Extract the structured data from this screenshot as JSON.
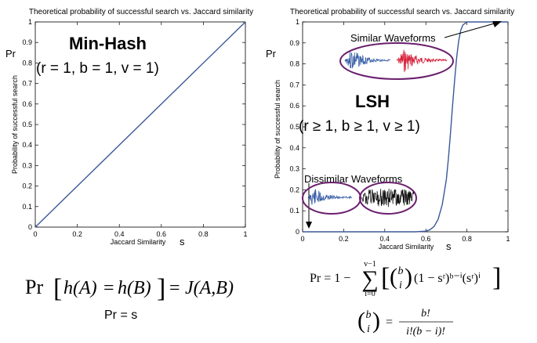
{
  "chart_data": [
    {
      "type": "line",
      "title": "Theoretical probability of successful search vs. Jaccard similarity",
      "xlabel": "Jaccard Similarity",
      "xlabel_symbol": "s",
      "ylabel": "Probability of successful search",
      "ylabel_symbol": "Pr",
      "xlim": [
        0,
        1
      ],
      "ylim": [
        0,
        1
      ],
      "xticks": [
        "0",
        "0.2",
        "0.4",
        "0.6",
        "0.8",
        "1"
      ],
      "yticks": [
        "0",
        "0.1",
        "0.2",
        "0.3",
        "0.4",
        "0.5",
        "0.6",
        "0.7",
        "0.8",
        "0.9",
        "1"
      ],
      "grid": false,
      "line_color": "#3b5998",
      "series": [
        {
          "x": [
            0,
            0.25,
            0.5,
            0.75,
            1
          ],
          "y": [
            0,
            0.25,
            0.5,
            0.75,
            1
          ]
        }
      ],
      "annotations": {
        "heading": "Min-Hash",
        "params": "(r = 1, b = 1, v = 1)"
      }
    },
    {
      "type": "line",
      "title": "Theoretical probability of successful search vs. Jaccard similarity",
      "xlabel": "Jaccard Similarity",
      "xlabel_symbol": "s",
      "ylabel": "Probability of successful search",
      "ylabel_symbol": "Pr",
      "xlim": [
        0,
        1
      ],
      "ylim": [
        0,
        1
      ],
      "xticks": [
        "0",
        "0.2",
        "0.4",
        "0.6",
        "0.8",
        "1"
      ],
      "yticks": [
        "0",
        "0.1",
        "0.2",
        "0.3",
        "0.4",
        "0.5",
        "0.6",
        "0.7",
        "0.8",
        "0.9",
        "1"
      ],
      "grid": false,
      "line_color": "#3b5998",
      "series": [
        {
          "x": [
            0,
            0.55,
            0.6,
            0.62,
            0.64,
            0.66,
            0.68,
            0.7,
            0.71,
            0.72,
            0.73,
            0.74,
            0.75,
            0.76,
            0.77,
            0.78,
            0.8,
            0.85,
            0.9,
            1
          ],
          "y": [
            0,
            0,
            0.003,
            0.01,
            0.025,
            0.06,
            0.13,
            0.25,
            0.35,
            0.47,
            0.6,
            0.72,
            0.83,
            0.91,
            0.96,
            0.985,
            1,
            1,
            1,
            1
          ]
        }
      ],
      "annotations": {
        "heading": "LSH",
        "params": "(r ≥ 1, b ≥ 1, v ≥ 1)",
        "similar_label": "Similar Waveforms",
        "dissimilar_label": "Dissimilar Waveforms"
      }
    }
  ],
  "waveform_colors": {
    "blue": "#3a5fa8",
    "red": "#d6223a",
    "black": "#111111",
    "ellipse": "#6a1f6e"
  },
  "formulas": {
    "left_lhs": "Pr",
    "left_h_a": "h(A)",
    "left_eq1": "=",
    "left_h_b": "h(B)",
    "left_eq2": "=",
    "left_j": "J(A,B)",
    "left_simple": "Pr = s",
    "right_pr": "Pr = 1 −",
    "right_sum_top": "v−1",
    "right_sum_sym": "∑",
    "right_sum_bot": "i=0",
    "right_binom_top": "b",
    "right_binom_bot": "i",
    "right_body": "(1 − sʳ)ᵇ⁻ⁱ(sʳ)ⁱ",
    "binom_top": "b",
    "binom_bot": "i",
    "binom_eq": "=",
    "binom_num": "b!",
    "binom_den": "i!(b − i)!"
  }
}
